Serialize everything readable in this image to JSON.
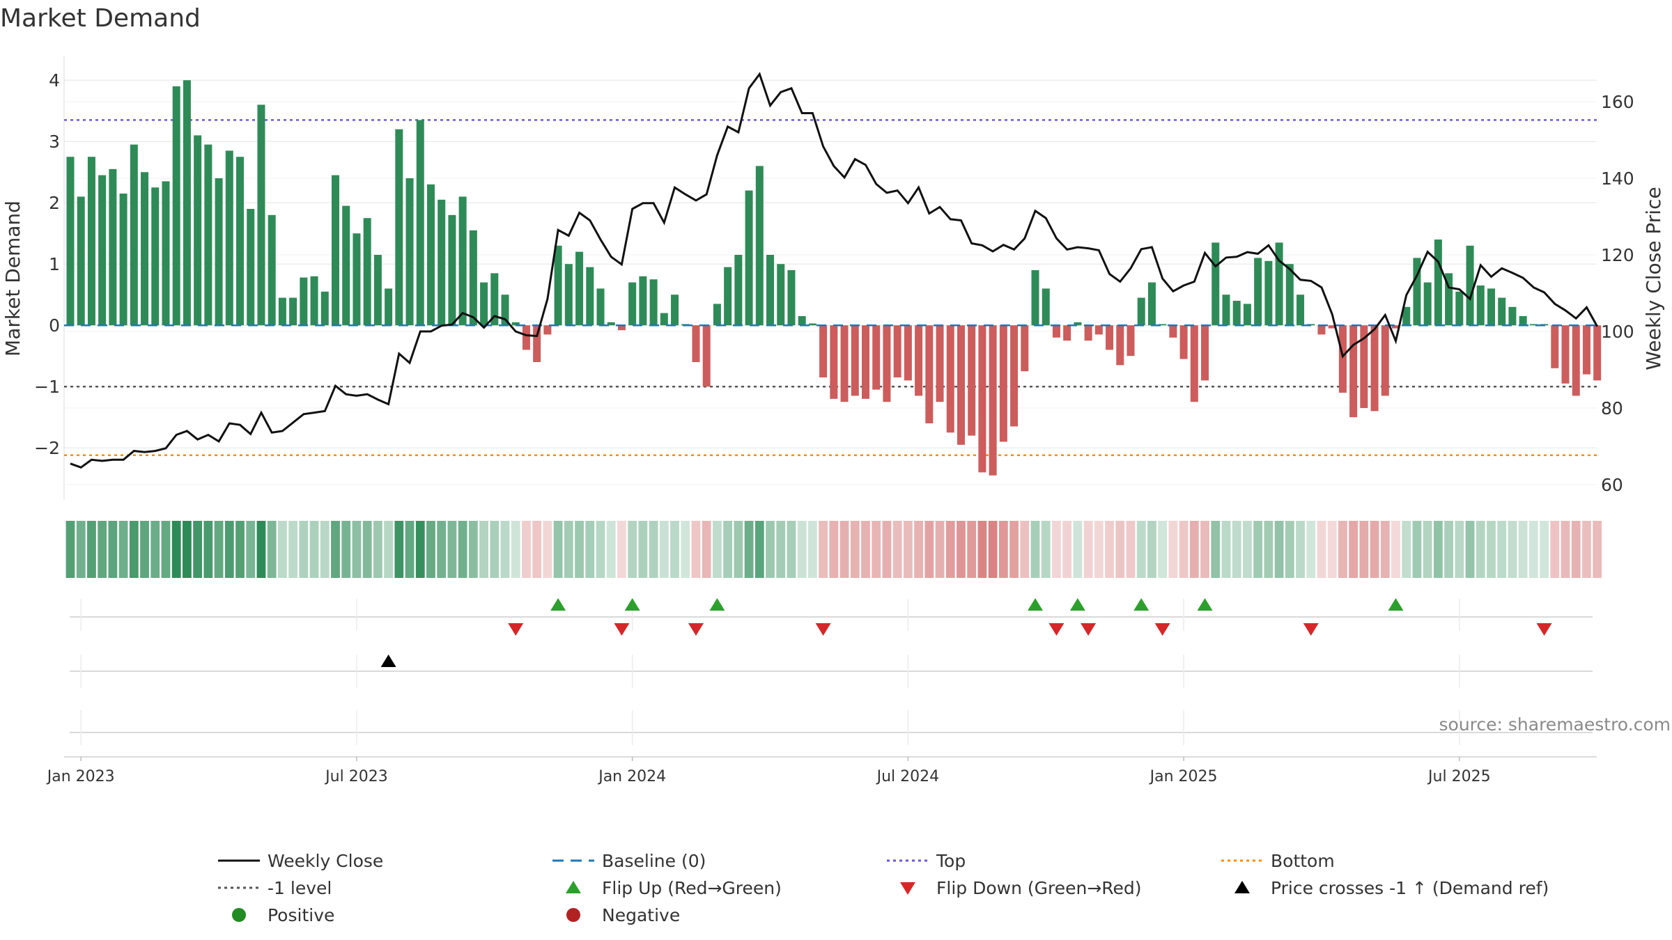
{
  "chart_data": {
    "type": "bar",
    "title": "Market Demand",
    "ylabel": "Market Demand",
    "y2label": "Weekly Close Price",
    "ylim": [
      -2.85,
      4.4
    ],
    "y2lim": [
      56,
      172
    ],
    "y_ticks": [
      4,
      3,
      2,
      1,
      0,
      -1,
      -2
    ],
    "y_tick_labels": [
      "4",
      "3",
      "2",
      "1",
      "0",
      "−1",
      "−2"
    ],
    "y2_ticks": [
      60,
      80,
      100,
      120,
      140,
      160
    ],
    "x_ticks": [
      "Jan 2023",
      "Jul 2023",
      "Jan 2024",
      "Jul 2024",
      "Jan 2025",
      "Jul 2025"
    ],
    "x_tick_weeks": [
      1,
      27,
      53,
      79,
      105,
      131
    ],
    "week_count": 145,
    "demand": [
      2.75,
      2.1,
      2.75,
      2.45,
      2.55,
      2.15,
      2.95,
      2.5,
      2.25,
      2.35,
      3.9,
      4.0,
      3.1,
      2.95,
      2.4,
      2.85,
      2.75,
      1.9,
      3.6,
      1.8,
      0.45,
      0.45,
      0.78,
      0.8,
      0.55,
      2.45,
      1.95,
      1.5,
      1.75,
      1.15,
      0.6,
      3.2,
      2.4,
      3.35,
      2.3,
      2.05,
      1.8,
      2.1,
      1.55,
      0.7,
      0.85,
      0.5,
      0.05,
      -0.4,
      -0.6,
      -0.15,
      1.3,
      1.0,
      1.2,
      0.95,
      0.6,
      0.05,
      -0.08,
      0.7,
      0.8,
      0.75,
      0.2,
      0.5,
      0.02,
      -0.6,
      -1.0,
      0.35,
      0.95,
      1.15,
      2.2,
      2.6,
      1.15,
      1.0,
      0.9,
      0.15,
      0.03,
      -0.85,
      -1.2,
      -1.25,
      -1.15,
      -1.2,
      -1.05,
      -1.25,
      -0.85,
      -0.9,
      -1.15,
      -1.6,
      -1.25,
      -1.75,
      -1.95,
      -1.8,
      -2.4,
      -2.45,
      -1.9,
      -1.65,
      -0.75,
      0.9,
      0.6,
      -0.2,
      -0.25,
      0.05,
      -0.25,
      -0.15,
      -0.4,
      -0.65,
      -0.5,
      0.45,
      0.7,
      0.02,
      -0.2,
      -0.55,
      -1.25,
      -0.9,
      1.35,
      0.5,
      0.4,
      0.35,
      1.1,
      1.05,
      1.35,
      1.0,
      0.5,
      0.02,
      -0.15,
      -0.05,
      -1.1,
      -1.5,
      -1.35,
      -1.4,
      -1.15,
      -0.05,
      0.3,
      1.1,
      0.7,
      1.4,
      0.85,
      0.55,
      1.3,
      0.65,
      0.6,
      0.45,
      0.3,
      0.15,
      0.02,
      0.02,
      -0.7,
      -0.95,
      -1.15,
      -0.8,
      -0.9
    ],
    "close": [
      65.5,
      64.5,
      66.5,
      66.2,
      66.5,
      66.5,
      68.8,
      68.5,
      68.8,
      69.5,
      73,
      74,
      71.8,
      73,
      71.3,
      76,
      75.6,
      73.2,
      78.8,
      73.6,
      74,
      76.2,
      78.4,
      78.8,
      79.2,
      85.8,
      83.6,
      83.2,
      83.6,
      82.2,
      81,
      94.2,
      91.8,
      100,
      100,
      101.5,
      101.8,
      104.8,
      103.7,
      101,
      104,
      103.2,
      100,
      99,
      98.8,
      108.5,
      126.5,
      125,
      131,
      129,
      124,
      119.5,
      117.5,
      132,
      133.5,
      133.5,
      128.4,
      137.6,
      135.8,
      134.2,
      135.8,
      146,
      153.5,
      152,
      163.5,
      167.2,
      159,
      162.5,
      163.5,
      157,
      157,
      148.3,
      143.2,
      140.2,
      145,
      143.5,
      138.5,
      136.2,
      136.8,
      133.5,
      137.6,
      130.8,
      132.5,
      129.3,
      129,
      123,
      122.5,
      120.9,
      122.6,
      121.4,
      124.3,
      131.5,
      129.6,
      124.3,
      121.4,
      122,
      121.7,
      121.2,
      115,
      113,
      116.5,
      121.5,
      122,
      113.8,
      110.5,
      112,
      113,
      120.5,
      117,
      119.3,
      119.5,
      120.7,
      120.3,
      122.5,
      118.5,
      116.3,
      113.5,
      113.2,
      111.5,
      104.5,
      93.5,
      96.5,
      98.2,
      100.6,
      104.3,
      97.5,
      109.5,
      114.6,
      120.8,
      118.2,
      111.5,
      111,
      108.5,
      117.3,
      114.3,
      116.5,
      115.3,
      114,
      111.5,
      110.2,
      107.2,
      105.5,
      103.4,
      106.3,
      101.3
    ],
    "reference_lines": {
      "top": 3.35,
      "minus_one": -1,
      "bottom": -2.12,
      "baseline": 0
    },
    "flip_up_weeks": [
      46,
      53,
      61,
      91,
      95,
      101,
      107,
      125
    ],
    "flip_down_weeks": [
      42,
      52,
      59,
      71,
      93,
      96,
      103,
      117,
      139
    ],
    "price_cross_weeks": [
      30
    ]
  },
  "source_note": "source: sharemaestro.com",
  "legend": [
    {
      "key": "close",
      "label": "Weekly Close"
    },
    {
      "key": "baseline",
      "label": "Baseline (0)"
    },
    {
      "key": "top",
      "label": "Top"
    },
    {
      "key": "bottom",
      "label": "Bottom"
    },
    {
      "key": "minus_one",
      "label": "-1 level"
    },
    {
      "key": "flip_up",
      "label": "Flip Up (Red→Green)"
    },
    {
      "key": "flip_down",
      "label": "Flip Down (Green→Red)"
    },
    {
      "key": "price_cross",
      "label": "Price crosses -1 ↑ (Demand ref)"
    },
    {
      "key": "positive",
      "label": "Positive"
    },
    {
      "key": "negative",
      "label": "Negative"
    }
  ],
  "colors": {
    "positive": "#2e8b57",
    "negative": "#cd5c5c",
    "close": "#111111",
    "baseline": "#1f77b4",
    "top": "#6a5acd",
    "minus_one": "#555555",
    "bottom": "#ff8c00",
    "flip_up": "#2ca02c",
    "flip_down": "#d62728",
    "price_cross": "#000000",
    "positive_dot": "#228b22",
    "negative_dot": "#b22222",
    "grid": "#e6e6e6"
  }
}
